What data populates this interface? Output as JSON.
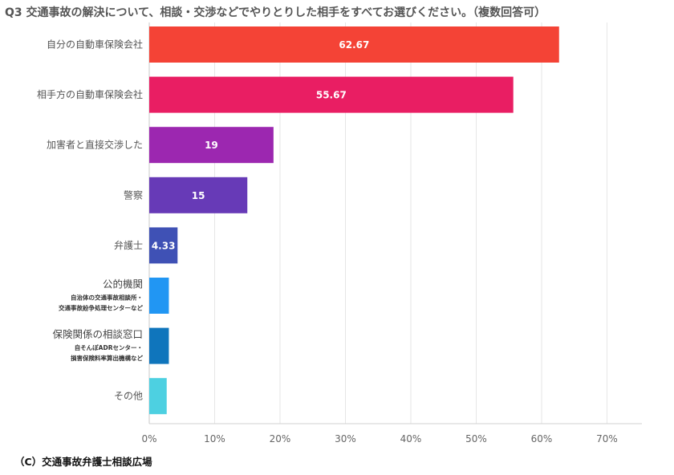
{
  "chart_data": {
    "type": "bar",
    "orientation": "horizontal",
    "title": "Q3 交通事故の解決について、相談・交渉などでやりとりした相手をすべてお選びください。（複数回答可）",
    "xlim": [
      0,
      75
    ],
    "xticks": [
      "0%",
      "10%",
      "20%",
      "30%",
      "40%",
      "50%",
      "60%",
      "70%"
    ],
    "grid": true,
    "bars": [
      {
        "label": "自分の自動車保険会社",
        "sub": [],
        "value": 62.67,
        "value_label": "62.67",
        "color": "#f44336"
      },
      {
        "label": "相手方の自動車保険会社",
        "sub": [],
        "value": 55.67,
        "value_label": "55.67",
        "color": "#e91e63"
      },
      {
        "label": "加害者と直接交渉した",
        "sub": [],
        "value": 19,
        "value_label": "19",
        "color": "#9c27b0"
      },
      {
        "label": "警察",
        "sub": [],
        "value": 15,
        "value_label": "15",
        "color": "#673ab7"
      },
      {
        "label": "弁護士",
        "sub": [],
        "value": 4.33,
        "value_label": "4.33",
        "color": "#3f51b5"
      },
      {
        "label": "公的機関",
        "sub": [
          "自治体の交通事故相談所・",
          "交通事故紛争処理センターなど"
        ],
        "value": 3,
        "value_label": "",
        "color": "#2196f3"
      },
      {
        "label": "保険関係の相談窓口",
        "sub": [
          "自そんぽADRセンター・",
          "損害保険料率算出機構など"
        ],
        "value": 3,
        "value_label": "",
        "color": "#0f75bc"
      },
      {
        "label": "その他",
        "sub": [],
        "value": 2.67,
        "value_label": "",
        "color": "#4dd0e1"
      }
    ]
  },
  "copyright": "（C）交通事故弁護士相談広場"
}
